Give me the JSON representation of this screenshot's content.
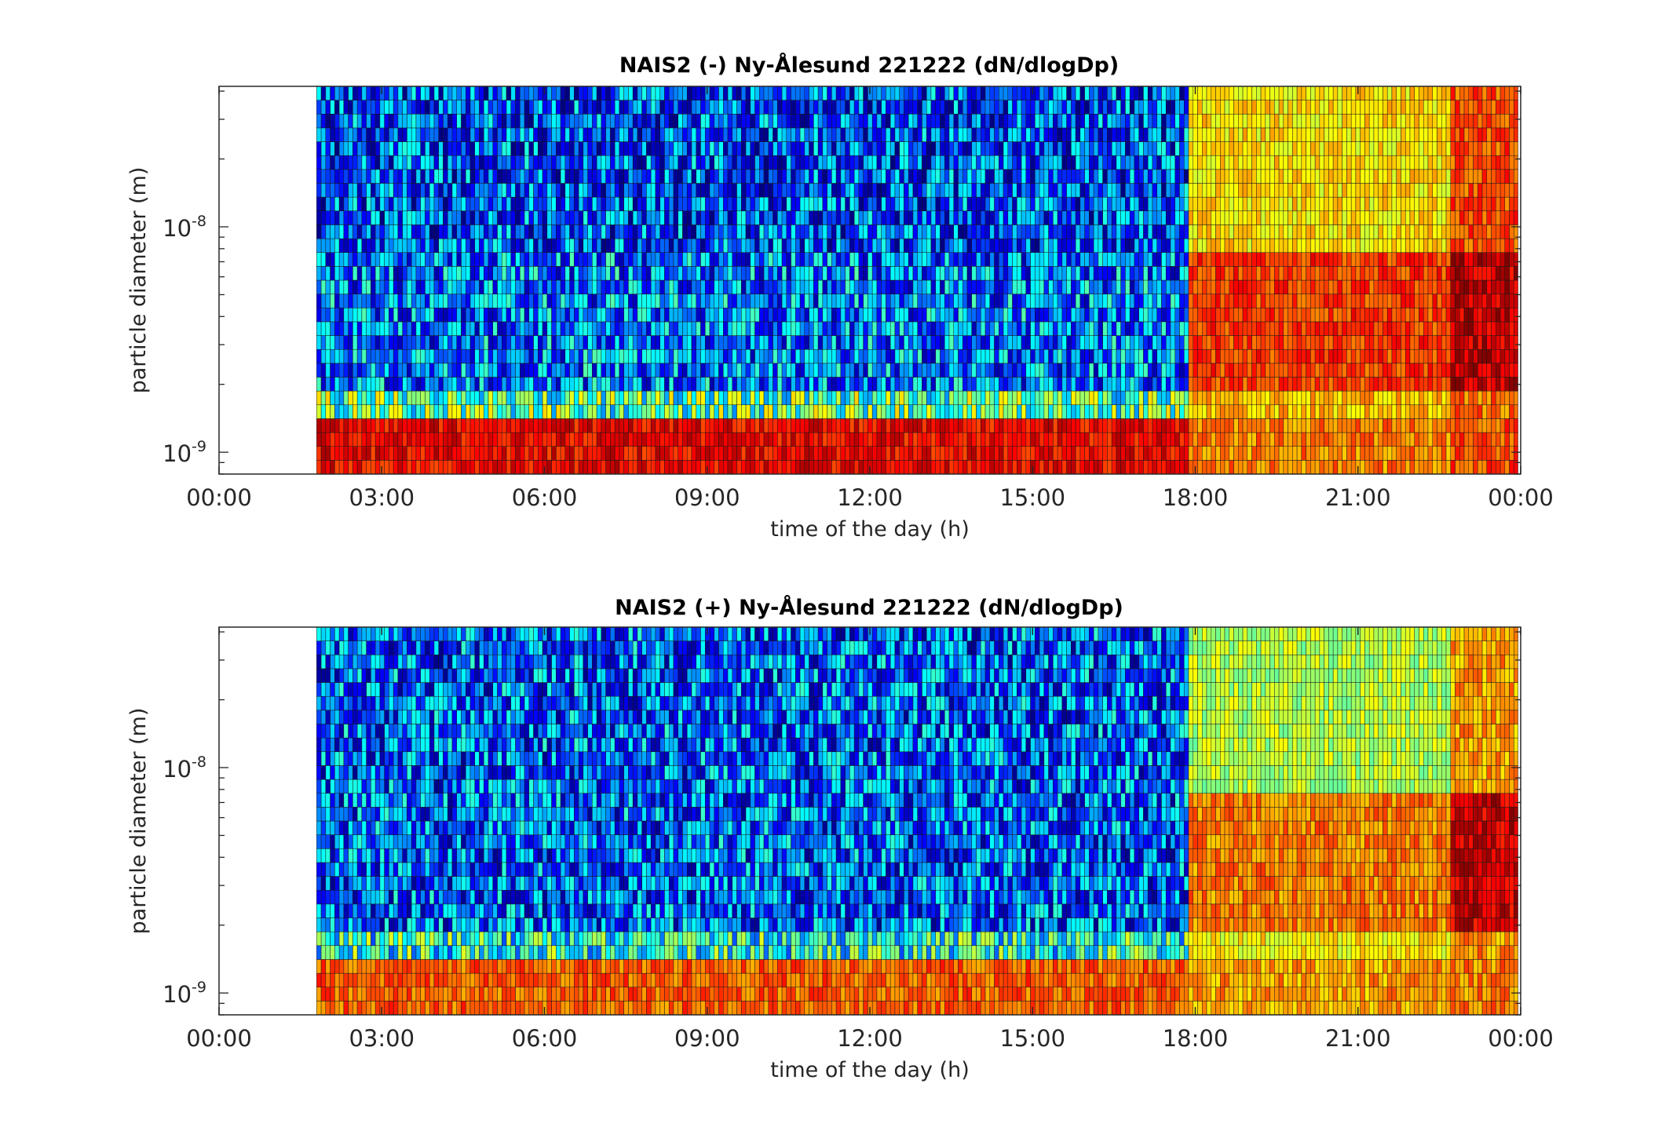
{
  "chart_data": [
    {
      "type": "heatmap",
      "title": "NAIS2 (-) Ny-Ålesund 221222 (dN/dlogDp)",
      "xlabel": "time of the day (h)",
      "ylabel": "particle diameter (m)",
      "x_range_hours": [
        0,
        24
      ],
      "x_ticks": [
        "00:00",
        "03:00",
        "06:00",
        "09:00",
        "12:00",
        "15:00",
        "18:00",
        "21:00",
        "00:00"
      ],
      "y_scale": "log",
      "y_range": [
        8e-10,
        4.2e-08
      ],
      "y_tick_values": [
        1e-09,
        1e-08
      ],
      "y_tick_base": "10",
      "y_tick_exponents": [
        "-9",
        "-8"
      ],
      "data_start_hour": 1.8,
      "data_end_hour": 23.95,
      "time_step_hours": 0.0833,
      "diameter_bin_count": 28,
      "colormap": "jet",
      "regimes": [
        {
          "from_hour": 1.8,
          "to_hour": 17.8,
          "lower_bins_level": 0.88,
          "mid_bins_level": 0.25,
          "upper_bins_level": 0.2
        },
        {
          "from_hour": 17.8,
          "to_hour": 22.7,
          "lower_bins_level": 0.75,
          "mid_bins_level": 0.82,
          "upper_bins_level": 0.65
        },
        {
          "from_hour": 22.7,
          "to_hour": 23.95,
          "lower_bins_level": 0.8,
          "mid_bins_level": 0.93,
          "upper_bins_level": 0.8
        }
      ]
    },
    {
      "type": "heatmap",
      "title": "NAIS2 (+) Ny-Ålesund 221222 (dN/dlogDp)",
      "xlabel": "time of the day (h)",
      "ylabel": "particle diameter (m)",
      "x_range_hours": [
        0,
        24
      ],
      "x_ticks": [
        "00:00",
        "03:00",
        "06:00",
        "09:00",
        "12:00",
        "15:00",
        "18:00",
        "21:00",
        "00:00"
      ],
      "y_scale": "log",
      "y_range": [
        8e-10,
        4.2e-08
      ],
      "y_tick_values": [
        1e-09,
        1e-08
      ],
      "y_tick_base": "10",
      "y_tick_exponents": [
        "-9",
        "-8"
      ],
      "data_start_hour": 1.8,
      "data_end_hour": 23.95,
      "time_step_hours": 0.0833,
      "diameter_bin_count": 28,
      "colormap": "jet",
      "regimes": [
        {
          "from_hour": 1.8,
          "to_hour": 17.8,
          "lower_bins_level": 0.78,
          "mid_bins_level": 0.22,
          "upper_bins_level": 0.22
        },
        {
          "from_hour": 17.8,
          "to_hour": 22.7,
          "lower_bins_level": 0.72,
          "mid_bins_level": 0.75,
          "upper_bins_level": 0.55
        },
        {
          "from_hour": 22.7,
          "to_hour": 23.95,
          "lower_bins_level": 0.75,
          "mid_bins_level": 0.92,
          "upper_bins_level": 0.72
        }
      ]
    }
  ]
}
